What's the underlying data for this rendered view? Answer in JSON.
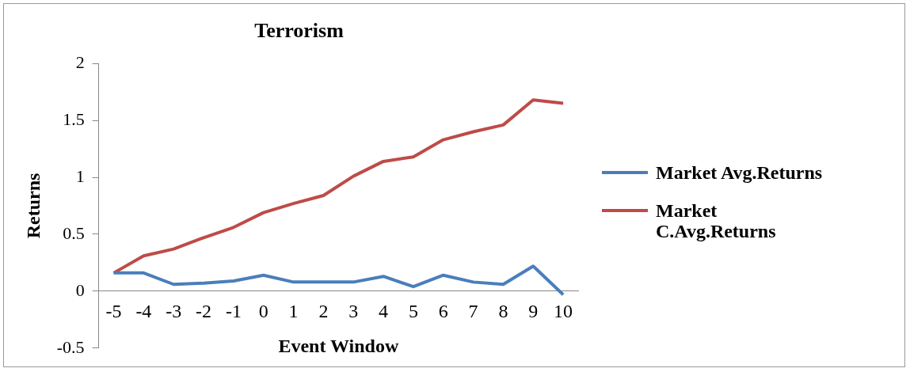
{
  "chart_data": {
    "type": "line",
    "title": "Terrorism",
    "xlabel": "Event Window",
    "ylabel": "Returns",
    "categories": [
      "-5",
      "-4",
      "-3",
      "-2",
      "-1",
      "0",
      "1",
      "2",
      "3",
      "4",
      "5",
      "6",
      "7",
      "8",
      "9",
      "10"
    ],
    "series": [
      {
        "name": "Market Avg.Returns",
        "color": "#4a7ebb",
        "values": [
          0.16,
          0.16,
          0.06,
          0.07,
          0.09,
          0.14,
          0.08,
          0.08,
          0.08,
          0.13,
          0.04,
          0.14,
          0.08,
          0.06,
          0.22,
          -0.03
        ]
      },
      {
        "name": "Market C.Avg.Returns",
        "color": "#be4b48",
        "values": [
          0.16,
          0.31,
          0.37,
          0.47,
          0.56,
          0.69,
          0.77,
          0.84,
          1.01,
          1.14,
          1.18,
          1.33,
          1.4,
          1.46,
          1.68,
          1.65
        ]
      }
    ],
    "ylim": [
      -0.5,
      2
    ],
    "yticks": [
      -0.5,
      0,
      0.5,
      1,
      1.5,
      2
    ],
    "grid": false,
    "legend": "right",
    "marker": "none",
    "line_style": "solid"
  }
}
